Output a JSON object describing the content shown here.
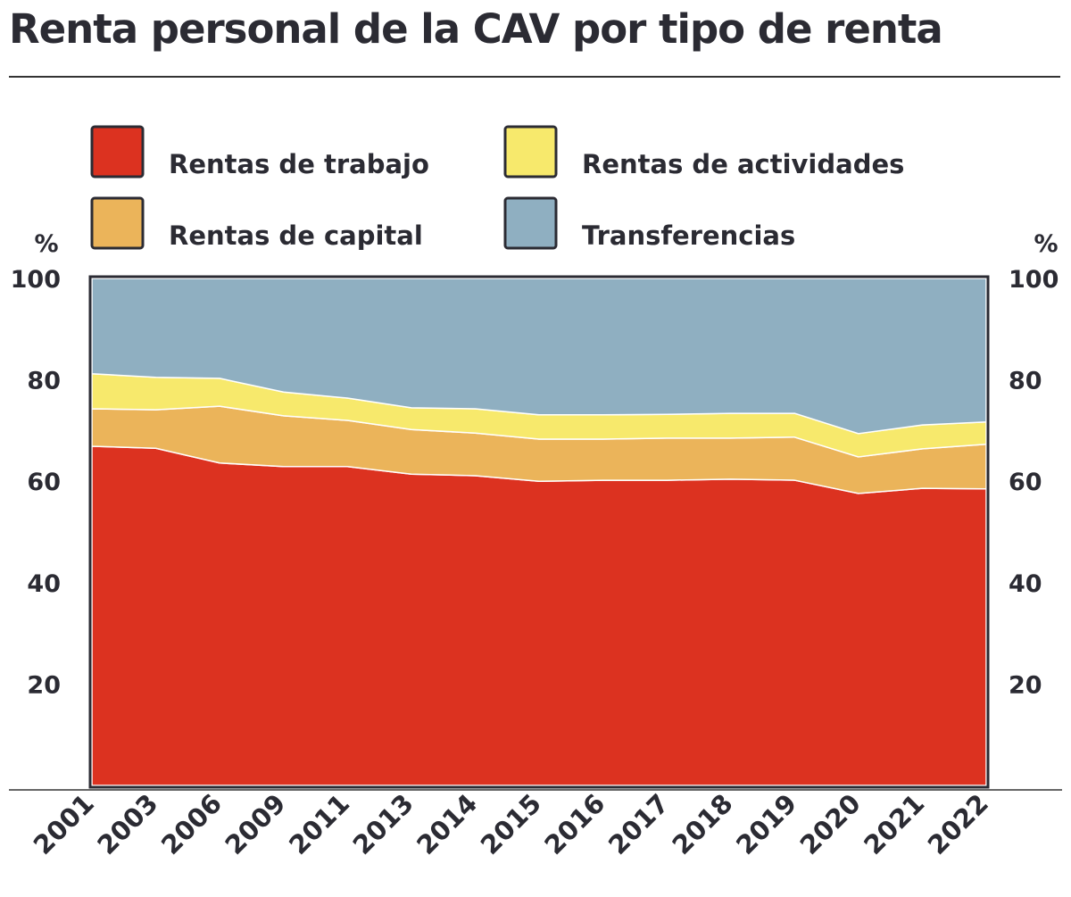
{
  "chart_data": {
    "type": "area",
    "stacked": true,
    "title": "Renta personal de la CAV por tipo de renta",
    "ylabel": "%",
    "ylim": [
      0,
      100
    ],
    "yticks": [
      20,
      40,
      60,
      80,
      100
    ],
    "categories": [
      "2001",
      "2003",
      "2006",
      "2009",
      "2011",
      "2013",
      "2014",
      "2015",
      "2016",
      "2017",
      "2018",
      "2019",
      "2020",
      "2021",
      "2022"
    ],
    "series": [
      {
        "name": "Rentas de trabajo",
        "color": "#dc3220",
        "values": [
          66.9,
          66.5,
          63.6,
          62.9,
          62.9,
          61.4,
          61.1,
          60.0,
          60.2,
          60.2,
          60.4,
          60.2,
          57.6,
          58.6,
          58.5
        ]
      },
      {
        "name": "Rentas de capital",
        "color": "#ebb45a",
        "values": [
          7.4,
          7.6,
          11.2,
          10.0,
          9.1,
          8.8,
          8.4,
          8.3,
          8.1,
          8.3,
          8.1,
          8.5,
          7.2,
          7.8,
          8.8
        ]
      },
      {
        "name": "Rentas de actividades",
        "color": "#f7e96c",
        "values": [
          6.9,
          6.4,
          5.5,
          4.7,
          4.4,
          4.3,
          4.8,
          4.8,
          4.8,
          4.7,
          4.9,
          4.7,
          4.6,
          4.7,
          4.4
        ]
      },
      {
        "name": "Transferencias",
        "color": "#8fafc1",
        "values": [
          18.8,
          19.5,
          19.7,
          22.4,
          23.6,
          25.5,
          25.7,
          26.9,
          26.9,
          26.8,
          26.6,
          26.6,
          30.6,
          28.9,
          28.3
        ]
      }
    ],
    "legend_placement": "top"
  }
}
